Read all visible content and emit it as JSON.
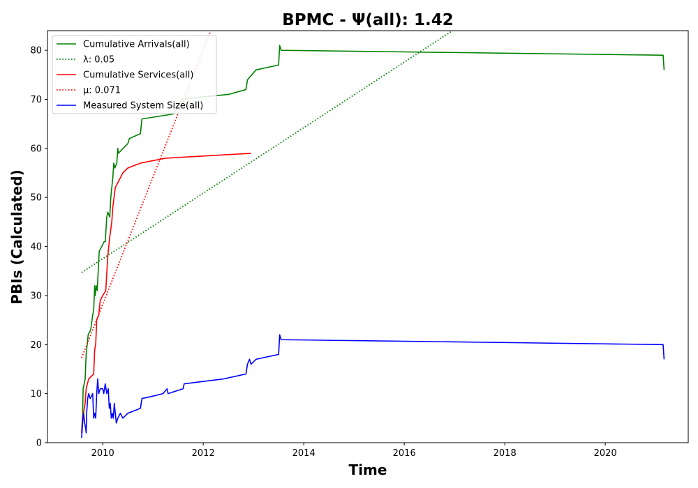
{
  "chart_data": {
    "type": "line",
    "title": "BPMC -  Ψ(all): 1.42",
    "xlabel": "Time",
    "ylabel": "PBIs (Calculated)",
    "xlim": [
      2008.9,
      2021.65
    ],
    "ylim": [
      0,
      84
    ],
    "xticks": [
      2010,
      2012,
      2014,
      2016,
      2018,
      2020
    ],
    "xtick_labels": [
      "2010",
      "2012",
      "2014",
      "2016",
      "2018",
      "2020"
    ],
    "yticks": [
      0,
      10,
      20,
      30,
      40,
      50,
      60,
      70,
      80
    ],
    "ytick_labels": [
      "0",
      "10",
      "20",
      "30",
      "40",
      "50",
      "60",
      "70",
      "80"
    ],
    "grid": false,
    "legend_position": "top-left",
    "series": [
      {
        "name": "Cumulative Arrivals(all)",
        "style": "solid",
        "color": "#008000",
        "points": [
          [
            2009.58,
            2
          ],
          [
            2009.6,
            6
          ],
          [
            2009.61,
            11
          ],
          [
            2009.65,
            13
          ],
          [
            2009.67,
            18
          ],
          [
            2009.69,
            20
          ],
          [
            2009.71,
            22
          ],
          [
            2009.76,
            23
          ],
          [
            2009.8,
            26
          ],
          [
            2009.82,
            27
          ],
          [
            2009.84,
            32
          ],
          [
            2009.85,
            30
          ],
          [
            2009.87,
            32
          ],
          [
            2009.89,
            31
          ],
          [
            2009.91,
            35
          ],
          [
            2009.93,
            39
          ],
          [
            2009.98,
            40
          ],
          [
            2010.03,
            41
          ],
          [
            2010.05,
            41
          ],
          [
            2010.08,
            46
          ],
          [
            2010.1,
            47
          ],
          [
            2010.14,
            46
          ],
          [
            2010.16,
            50
          ],
          [
            2010.2,
            54
          ],
          [
            2010.22,
            57
          ],
          [
            2010.24,
            56
          ],
          [
            2010.28,
            57
          ],
          [
            2010.3,
            60
          ],
          [
            2010.31,
            59
          ],
          [
            2010.5,
            61
          ],
          [
            2010.53,
            62
          ],
          [
            2010.75,
            63
          ],
          [
            2010.78,
            66
          ],
          [
            2011.4,
            67
          ],
          [
            2011.58,
            70
          ],
          [
            2011.8,
            70.3
          ],
          [
            2012.5,
            71
          ],
          [
            2012.85,
            72
          ],
          [
            2012.88,
            74
          ],
          [
            2013.05,
            76
          ],
          [
            2013.5,
            77
          ],
          [
            2013.52,
            81
          ],
          [
            2013.55,
            80
          ],
          [
            2021.15,
            79
          ],
          [
            2021.17,
            76
          ]
        ]
      },
      {
        "name": "λ: 0.05",
        "style": "dotted",
        "color": "#008000",
        "points": [
          [
            2009.58,
            34.7
          ],
          [
            2016.96,
            84
          ]
        ]
      },
      {
        "name": "Cumulative Services(all)",
        "style": "solid",
        "color": "#ff0000",
        "points": [
          [
            2009.58,
            2
          ],
          [
            2009.6,
            5
          ],
          [
            2009.65,
            8
          ],
          [
            2009.67,
            11
          ],
          [
            2009.72,
            13
          ],
          [
            2009.82,
            14
          ],
          [
            2009.84,
            19
          ],
          [
            2009.86,
            20
          ],
          [
            2009.88,
            25
          ],
          [
            2009.92,
            26
          ],
          [
            2009.95,
            29
          ],
          [
            2010.0,
            30
          ],
          [
            2010.06,
            31
          ],
          [
            2010.1,
            38
          ],
          [
            2010.14,
            42
          ],
          [
            2010.18,
            45
          ],
          [
            2010.2,
            48
          ],
          [
            2010.25,
            52
          ],
          [
            2010.3,
            53
          ],
          [
            2010.4,
            55
          ],
          [
            2010.5,
            56
          ],
          [
            2010.75,
            57
          ],
          [
            2011.0,
            57.5
          ],
          [
            2011.25,
            58
          ],
          [
            2012.95,
            59
          ]
        ]
      },
      {
        "name": "μ: 0.071",
        "style": "dotted",
        "color": "#ff0000",
        "points": [
          [
            2009.58,
            17.3
          ],
          [
            2012.15,
            84
          ]
        ]
      },
      {
        "name": "Measured System Size(all)",
        "style": "solid",
        "color": "#0000ff",
        "points": [
          [
            2009.58,
            1
          ],
          [
            2009.6,
            4
          ],
          [
            2009.62,
            6
          ],
          [
            2009.64,
            4
          ],
          [
            2009.66,
            3
          ],
          [
            2009.67,
            2
          ],
          [
            2009.68,
            6
          ],
          [
            2009.7,
            9
          ],
          [
            2009.72,
            10
          ],
          [
            2009.75,
            9
          ],
          [
            2009.8,
            10
          ],
          [
            2009.82,
            5
          ],
          [
            2009.84,
            6
          ],
          [
            2009.86,
            5
          ],
          [
            2009.88,
            10
          ],
          [
            2009.9,
            13
          ],
          [
            2009.92,
            10
          ],
          [
            2009.95,
            11
          ],
          [
            2010.0,
            11
          ],
          [
            2010.02,
            10
          ],
          [
            2010.05,
            12
          ],
          [
            2010.08,
            10
          ],
          [
            2010.11,
            11
          ],
          [
            2010.13,
            7
          ],
          [
            2010.15,
            8
          ],
          [
            2010.17,
            5
          ],
          [
            2010.19,
            6
          ],
          [
            2010.21,
            5
          ],
          [
            2010.23,
            8
          ],
          [
            2010.25,
            6
          ],
          [
            2010.27,
            4
          ],
          [
            2010.3,
            5
          ],
          [
            2010.35,
            6
          ],
          [
            2010.4,
            5
          ],
          [
            2010.5,
            6
          ],
          [
            2010.75,
            7
          ],
          [
            2010.78,
            9
          ],
          [
            2011.0,
            9.5
          ],
          [
            2011.2,
            10
          ],
          [
            2011.28,
            11
          ],
          [
            2011.3,
            10
          ],
          [
            2011.6,
            11
          ],
          [
            2011.62,
            12
          ],
          [
            2012.4,
            13
          ],
          [
            2012.85,
            14
          ],
          [
            2012.88,
            16
          ],
          [
            2012.92,
            17
          ],
          [
            2012.95,
            16
          ],
          [
            2013.05,
            17
          ],
          [
            2013.5,
            18
          ],
          [
            2013.52,
            22
          ],
          [
            2013.55,
            21
          ],
          [
            2021.15,
            20
          ],
          [
            2021.17,
            17
          ]
        ]
      }
    ]
  }
}
